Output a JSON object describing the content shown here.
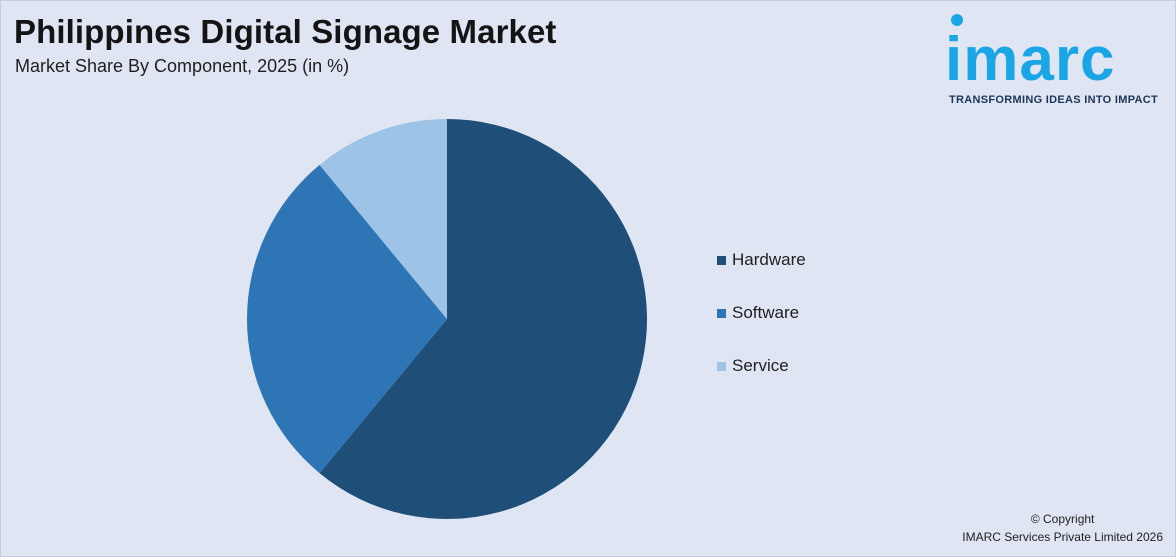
{
  "header": {
    "title": "Philippines Digital Signage Market",
    "subtitle": "Market Share By Component, 2025 (in %)"
  },
  "logo": {
    "wordmark": "imarc",
    "tagline": "TRANSFORMING IDEAS INTO IMPACT",
    "color": "#1aa6e6"
  },
  "chart_data": {
    "type": "pie",
    "title": "Philippines Digital Signage Market",
    "subtitle": "Market Share By Component, 2025 (in %)",
    "categories": [
      "Hardware",
      "Software",
      "Service"
    ],
    "values": [
      61,
      28,
      11
    ],
    "colors": [
      "#1f4e79",
      "#2e75b6",
      "#9dc3e6"
    ],
    "legend_position": "right",
    "start_angle_deg": 0,
    "direction": "clockwise"
  },
  "footer": {
    "copyright": "© Copyright",
    "company": "IMARC Services Private Limited 2026"
  }
}
